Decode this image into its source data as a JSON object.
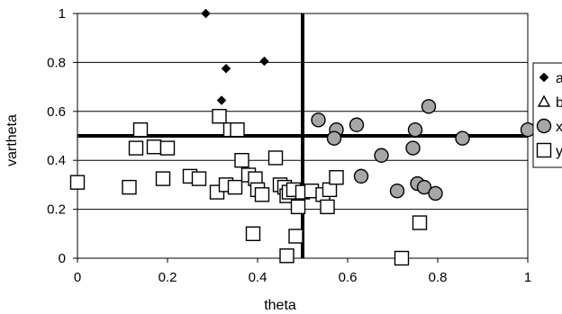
{
  "chart_data": {
    "type": "scatter",
    "xlabel": "theta",
    "ylabel": "vartheta",
    "xlim": [
      0,
      1
    ],
    "ylim": [
      0,
      1
    ],
    "x_ticks": [
      "0",
      "0.2",
      "0.4",
      "0.6",
      "0.8",
      "1"
    ],
    "y_ticks": [
      "0",
      "0.2",
      "0.4",
      "0.6",
      "0.8",
      "1"
    ],
    "grid": "horizontal",
    "legend_position": "right (partially clipped)",
    "reference_lines": {
      "x": 0.5,
      "y": 0.5
    },
    "series": [
      {
        "name": "a",
        "marker": "diamond",
        "color": "#000000",
        "points": [
          [
            0.285,
            1.0
          ],
          [
            0.33,
            0.775
          ],
          [
            0.415,
            0.805
          ],
          [
            0.32,
            0.645
          ]
        ]
      },
      {
        "name": "b",
        "marker": "triangle",
        "color": "#000000",
        "points": []
      },
      {
        "name": "x",
        "marker": "circle",
        "color": "#a6a6a6",
        "points": [
          [
            0.535,
            0.565
          ],
          [
            0.575,
            0.525
          ],
          [
            0.57,
            0.49
          ],
          [
            0.62,
            0.545
          ],
          [
            0.63,
            0.335
          ],
          [
            0.675,
            0.42
          ],
          [
            0.71,
            0.275
          ],
          [
            0.745,
            0.45
          ],
          [
            0.75,
            0.525
          ],
          [
            0.78,
            0.62
          ],
          [
            0.755,
            0.305
          ],
          [
            0.77,
            0.29
          ],
          [
            0.795,
            0.265
          ],
          [
            0.855,
            0.49
          ],
          [
            1.0,
            0.525
          ]
        ]
      },
      {
        "name": "y",
        "marker": "square",
        "color": "#ffffff",
        "points": [
          [
            0.0,
            0.31
          ],
          [
            0.115,
            0.29
          ],
          [
            0.13,
            0.45
          ],
          [
            0.14,
            0.525
          ],
          [
            0.17,
            0.455
          ],
          [
            0.19,
            0.325
          ],
          [
            0.2,
            0.45
          ],
          [
            0.25,
            0.335
          ],
          [
            0.27,
            0.325
          ],
          [
            0.31,
            0.27
          ],
          [
            0.315,
            0.58
          ],
          [
            0.33,
            0.3
          ],
          [
            0.34,
            0.525
          ],
          [
            0.355,
            0.525
          ],
          [
            0.35,
            0.29
          ],
          [
            0.365,
            0.4
          ],
          [
            0.38,
            0.34
          ],
          [
            0.39,
            0.1
          ],
          [
            0.395,
            0.325
          ],
          [
            0.4,
            0.28
          ],
          [
            0.41,
            0.26
          ],
          [
            0.44,
            0.41
          ],
          [
            0.45,
            0.3
          ],
          [
            0.46,
            0.29
          ],
          [
            0.465,
            0.255
          ],
          [
            0.465,
            0.01
          ],
          [
            0.47,
            0.27
          ],
          [
            0.48,
            0.28
          ],
          [
            0.485,
            0.09
          ],
          [
            0.49,
            0.21
          ],
          [
            0.5,
            0.27
          ],
          [
            0.52,
            0.275
          ],
          [
            0.545,
            0.26
          ],
          [
            0.555,
            0.21
          ],
          [
            0.56,
            0.28
          ],
          [
            0.575,
            0.33
          ],
          [
            0.72,
            0.0
          ],
          [
            0.76,
            0.145
          ]
        ]
      }
    ]
  }
}
